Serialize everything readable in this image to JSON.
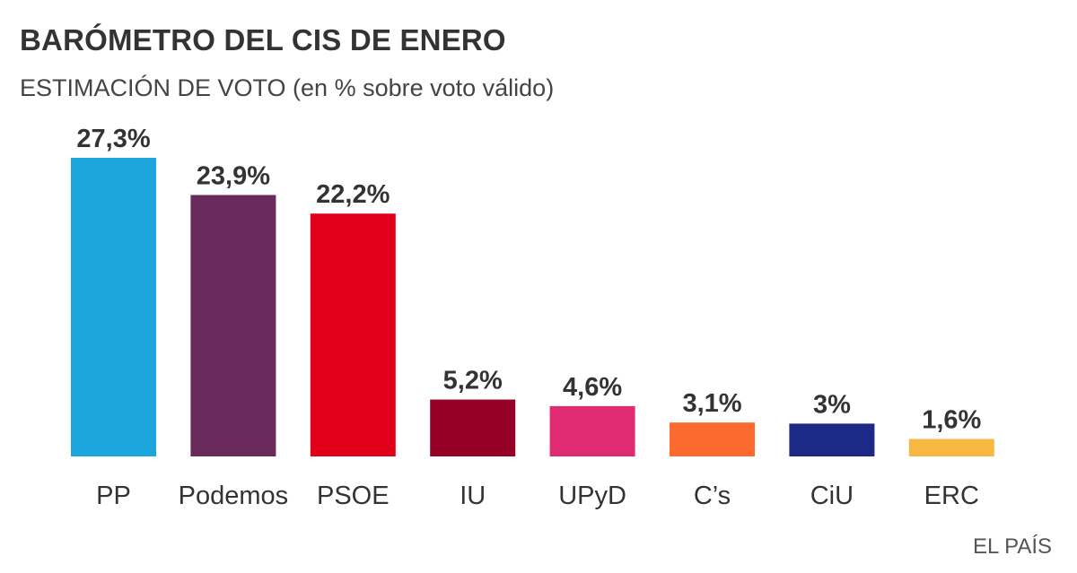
{
  "chart_data": {
    "type": "bar",
    "title": "BARÓMETRO DEL CIS DE ENERO",
    "subtitle": "ESTIMACIÓN DE VOTO (en % sobre voto válido)",
    "xlabel": "",
    "ylabel": "",
    "categories": [
      "PP",
      "Podemos",
      "PSOE",
      "IU",
      "UPyD",
      "C’s",
      "CiU",
      "ERC"
    ],
    "values": [
      27.3,
      23.9,
      22.2,
      5.2,
      4.6,
      3.1,
      3.0,
      1.6
    ],
    "value_labels": [
      "27,3%",
      "23,9%",
      "22,2%",
      "5,2%",
      "4,6%",
      "3,1%",
      "3%",
      "1,6%"
    ],
    "colors": [
      "#1da6dd",
      "#6a2a5c",
      "#e1001a",
      "#950026",
      "#e02b72",
      "#fd6a2f",
      "#1d2a85",
      "#f6b843"
    ],
    "ylim": [
      0,
      27.3
    ],
    "grid": false,
    "legend": "none",
    "source": "EL PAÍS"
  }
}
